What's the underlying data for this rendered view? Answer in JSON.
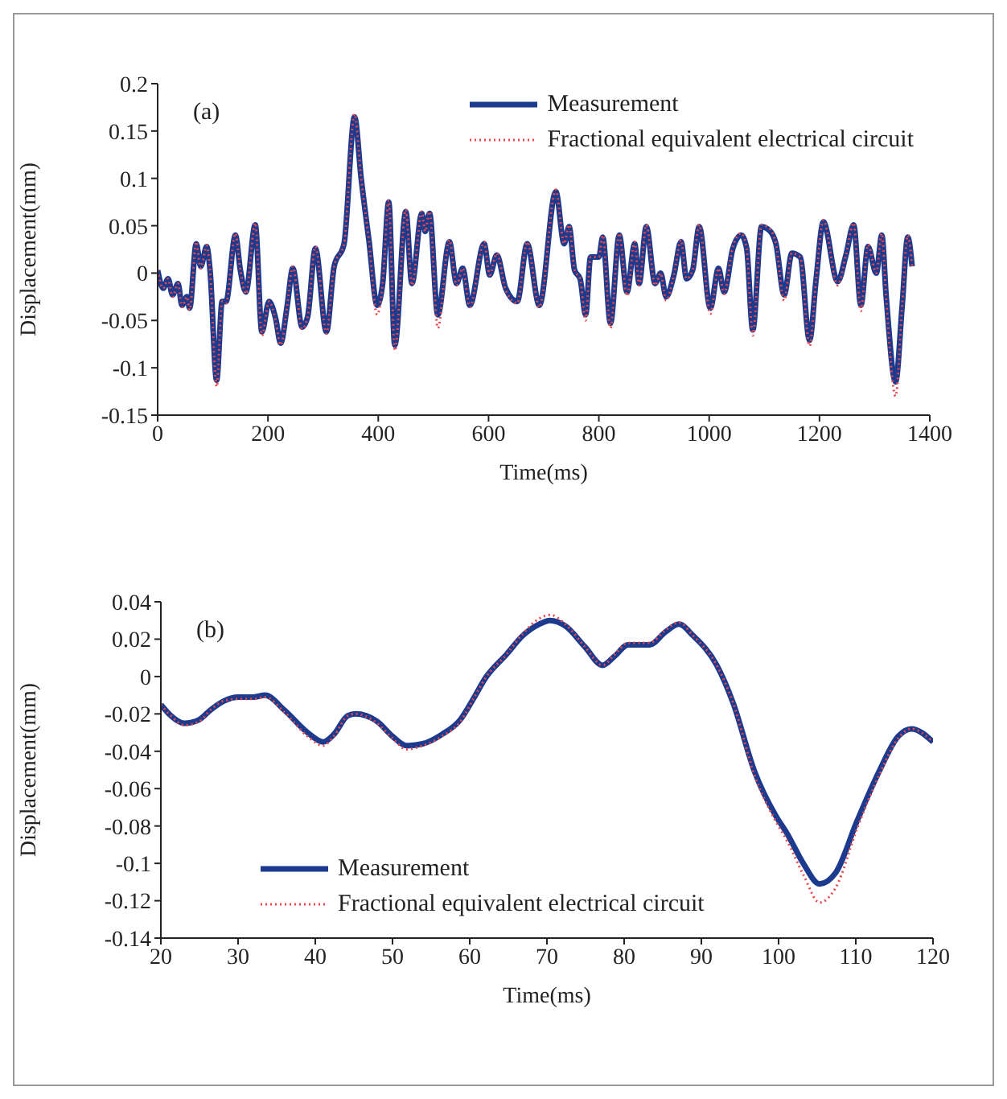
{
  "chart_data": [
    {
      "type": "line",
      "annotations": [
        "(a)"
      ],
      "xlabel": "Time(ms)",
      "ylabel": "Displacement(mm)",
      "xlim": [
        0,
        1400
      ],
      "xticks": [
        0,
        200,
        400,
        600,
        800,
        1000,
        1200,
        1400
      ],
      "ylim": [
        -0.15,
        0.2
      ],
      "yticks": [
        -0.15,
        -0.1,
        -0.05,
        0,
        0.05,
        0.1,
        0.15,
        0.2
      ],
      "legend": "top right",
      "grid": false,
      "x": [
        0,
        10,
        19,
        27,
        37,
        44,
        53,
        58,
        70,
        78,
        89,
        95,
        107,
        117,
        124,
        141,
        150,
        160,
        177,
        189,
        202,
        214,
        223,
        235,
        245,
        262,
        272,
        286,
        306,
        320,
        338,
        357,
        369,
        383,
        398,
        408,
        419,
        430,
        450,
        461,
        479,
        485,
        493,
        508,
        529,
        542,
        553,
        566,
        592,
        602,
        615,
        631,
        652,
        670,
        692,
        722,
        737,
        746,
        756,
        766,
        776,
        785,
        800,
        807,
        821,
        837,
        851,
        865,
        873,
        886,
        902,
        912,
        922,
        936,
        949,
        959,
        970,
        982,
        1002,
        1017,
        1027,
        1043,
        1058,
        1068,
        1079,
        1095,
        1111,
        1121,
        1136,
        1150,
        1165,
        1182,
        1194,
        1207,
        1233,
        1248,
        1262,
        1275,
        1288,
        1303,
        1313,
        1321,
        1338,
        1350,
        1360,
        1368
      ],
      "series": [
        {
          "name": "Measurement",
          "color": "#1c3a8e",
          "line_style": "solid",
          "values": [
            0.003,
            -0.016,
            -0.006,
            -0.023,
            -0.011,
            -0.034,
            -0.025,
            -0.037,
            0.031,
            0.007,
            0.028,
            0.003,
            -0.113,
            -0.03,
            -0.03,
            0.04,
            0.003,
            -0.02,
            0.051,
            -0.062,
            -0.03,
            -0.048,
            -0.074,
            -0.034,
            0.005,
            -0.057,
            -0.046,
            0.026,
            -0.062,
            0.007,
            0.031,
            0.165,
            0.1,
            0.035,
            -0.034,
            -0.011,
            0.075,
            -0.076,
            0.065,
            -0.011,
            0.063,
            0.044,
            0.063,
            -0.044,
            0.033,
            -0.011,
            0.005,
            -0.034,
            0.031,
            -0.002,
            0.019,
            -0.016,
            -0.03,
            0.031,
            -0.034,
            0.086,
            0.031,
            0.049,
            0.003,
            -0.006,
            -0.044,
            0.017,
            0.017,
            0.038,
            -0.053,
            0.04,
            -0.02,
            0.031,
            -0.011,
            0.049,
            -0.011,
            0,
            -0.025,
            -0.002,
            0.033,
            -0.006,
            0.003,
            0.049,
            -0.037,
            0.005,
            -0.02,
            0.026,
            0.04,
            0.026,
            -0.06,
            0.049,
            0.044,
            0.031,
            -0.023,
            0.021,
            0.017,
            -0.071,
            -0.006,
            0.054,
            -0.009,
            0.019,
            0.051,
            -0.034,
            0.028,
            0,
            0.04,
            -0.025,
            -0.115,
            -0.034,
            0.038,
            0.007
          ]
        },
        {
          "name": "Fractional equivalent electrical circuit",
          "color": "#e8474c",
          "line_style": "dotted",
          "values": [
            0.003,
            -0.016,
            -0.006,
            -0.025,
            -0.011,
            -0.036,
            -0.025,
            -0.039,
            0.033,
            0.005,
            0.029,
            0.003,
            -0.12,
            -0.03,
            -0.032,
            0.042,
            0.003,
            -0.022,
            0.053,
            -0.066,
            -0.03,
            -0.05,
            -0.076,
            -0.034,
            0.007,
            -0.059,
            -0.046,
            0.028,
            -0.064,
            0.007,
            0.031,
            0.168,
            0.1,
            0.035,
            -0.044,
            -0.011,
            0.077,
            -0.082,
            0.067,
            -0.013,
            0.065,
            0.044,
            0.065,
            -0.058,
            0.035,
            -0.013,
            0.005,
            -0.036,
            0.033,
            -0.002,
            0.021,
            -0.018,
            -0.032,
            0.033,
            -0.036,
            0.088,
            0.031,
            0.051,
            0.003,
            -0.006,
            -0.05,
            0.017,
            0.017,
            0.04,
            -0.058,
            0.042,
            -0.024,
            0.033,
            -0.013,
            0.051,
            -0.013,
            0,
            -0.029,
            -0.002,
            0.035,
            -0.006,
            0.003,
            0.051,
            -0.043,
            0.005,
            -0.022,
            0.028,
            0.042,
            0.026,
            -0.066,
            0.051,
            0.046,
            0.031,
            -0.029,
            0.021,
            0.017,
            -0.077,
            -0.006,
            0.056,
            -0.013,
            0.019,
            0.053,
            -0.04,
            0.03,
            0,
            0.042,
            -0.027,
            -0.13,
            -0.034,
            0.04,
            0.007
          ]
        }
      ]
    },
    {
      "type": "line",
      "annotations": [
        "(b)"
      ],
      "xlabel": "Time(ms)",
      "ylabel": "Displacement(mm)",
      "xlim": [
        20,
        120
      ],
      "xticks": [
        20,
        30,
        40,
        50,
        60,
        70,
        80,
        90,
        100,
        110,
        120
      ],
      "ylim": [
        -0.14,
        0.04
      ],
      "yticks": [
        -0.14,
        -0.12,
        -0.1,
        -0.08,
        -0.06,
        -0.04,
        -0.02,
        0,
        0.02,
        0.04
      ],
      "legend": "left",
      "grid": false,
      "x": [
        20,
        21.3,
        23,
        25,
        26.4,
        28.2,
        30,
        32,
        33.5,
        36,
        39,
        41,
        42.4,
        44.2,
        45.2,
        48,
        50,
        51.8,
        53.9,
        56.4,
        58.8,
        60.6,
        62,
        64.8,
        66.9,
        69,
        70.4,
        72.4,
        74.9,
        77.2,
        78.8,
        80.5,
        83.3,
        85.4,
        87.1,
        88.9,
        92,
        94.1,
        96.9,
        99.7,
        101.1,
        103.2,
        105.3,
        107.4,
        110.2,
        113,
        115.5,
        117.2,
        120
      ],
      "series": [
        {
          "name": "Measurement",
          "color": "#1c3a8e",
          "line_style": "solid",
          "values": [
            -0.015,
            -0.021,
            -0.025,
            -0.023,
            -0.018,
            -0.013,
            -0.011,
            -0.011,
            -0.01,
            -0.018,
            -0.03,
            -0.035,
            -0.031,
            -0.021,
            -0.02,
            -0.024,
            -0.032,
            -0.037,
            -0.036,
            -0.031,
            -0.023,
            -0.011,
            -0.001,
            0.012,
            0.022,
            0.028,
            0.03,
            0.027,
            0.016,
            0.006,
            0.011,
            0.017,
            0.017,
            0.024,
            0.028,
            0.022,
            0.006,
            -0.014,
            -0.051,
            -0.075,
            -0.084,
            -0.1,
            -0.111,
            -0.105,
            -0.077,
            -0.051,
            -0.032,
            -0.028,
            -0.035
          ]
        },
        {
          "name": "Fractional equivalent electrical circuit",
          "color": "#e8474c",
          "line_style": "dotted",
          "values": [
            -0.015,
            -0.021,
            -0.026,
            -0.024,
            -0.018,
            -0.013,
            -0.012,
            -0.012,
            -0.011,
            -0.019,
            -0.032,
            -0.037,
            -0.032,
            -0.021,
            -0.02,
            -0.025,
            -0.033,
            -0.039,
            -0.037,
            -0.032,
            -0.024,
            -0.011,
            -0.001,
            0.012,
            0.023,
            0.031,
            0.033,
            0.028,
            0.016,
            0.006,
            0.012,
            0.018,
            0.018,
            0.025,
            0.029,
            0.022,
            0.006,
            -0.014,
            -0.053,
            -0.078,
            -0.088,
            -0.106,
            -0.121,
            -0.113,
            -0.081,
            -0.053,
            -0.033,
            -0.028,
            -0.035
          ]
        }
      ]
    }
  ]
}
